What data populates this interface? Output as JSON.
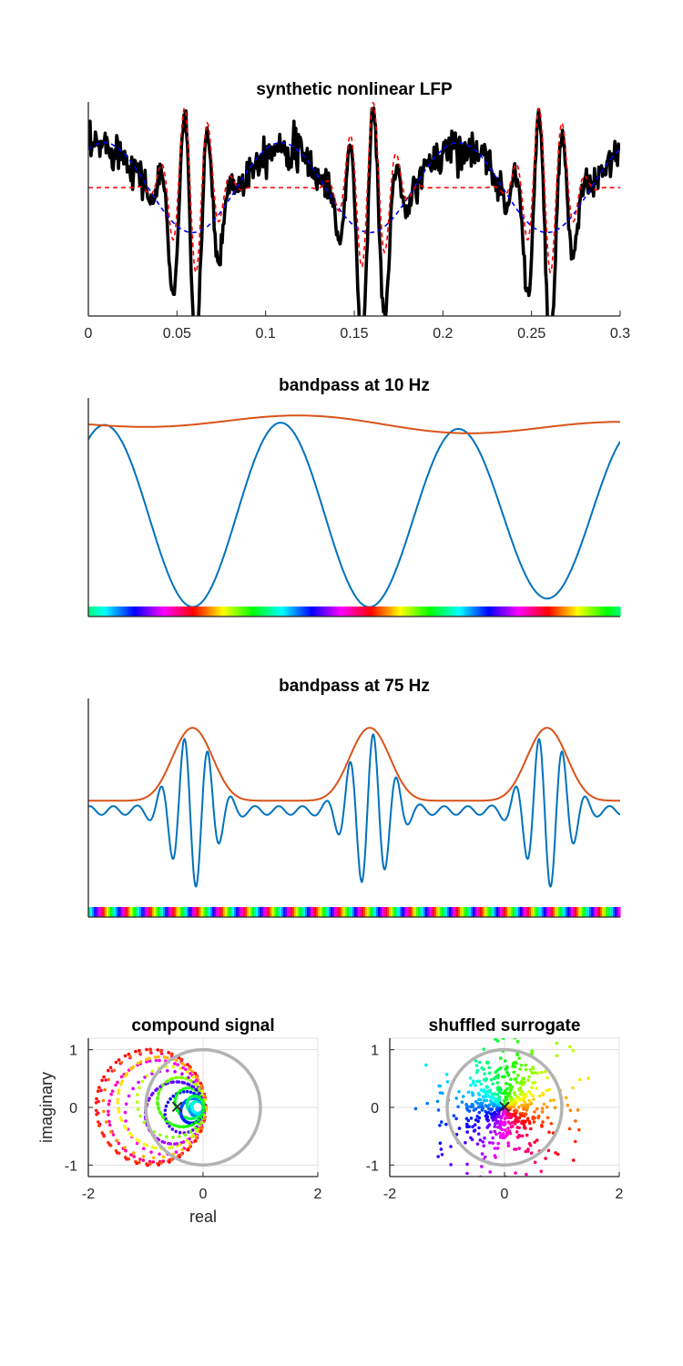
{
  "figure": {
    "colors": {
      "lfp": "#000000",
      "low_component": "#0000ff",
      "high_component": "#ff0000",
      "filtered": "#0072bd",
      "envelope": "#d95319",
      "unit_circle": "#b3b3b3",
      "grid": "#e0e0e0"
    }
  },
  "chart_data": [
    {
      "id": "lfp",
      "type": "line",
      "title": "synthetic nonlinear LFP",
      "xlim": [
        0,
        0.3
      ],
      "xticks": [
        "0",
        "0.05",
        "0.1",
        "0.15",
        "0.2",
        "0.25",
        "0.3"
      ],
      "yticks_shown": false,
      "slow_freq_hz": 10,
      "fast_freq_hz": 75,
      "series": [
        {
          "role": "lfp",
          "style": "solid",
          "color": "#000000"
        },
        {
          "role": "low_component",
          "style": "dashed",
          "color": "#0000ff"
        },
        {
          "role": "high_component",
          "style": "dashed",
          "color": "#ff0000"
        }
      ]
    },
    {
      "id": "bp10",
      "type": "line",
      "title": "bandpass at 10 Hz",
      "xlim": [
        0,
        0.3
      ],
      "freq_hz": 10,
      "series": [
        {
          "role": "filtered",
          "color": "#0072bd"
        },
        {
          "role": "envelope",
          "color": "#d95319"
        }
      ],
      "phase_colorbar": true
    },
    {
      "id": "bp75",
      "type": "line",
      "title": "bandpass at 75 Hz",
      "xlim": [
        0,
        0.3
      ],
      "freq_hz": 75,
      "series": [
        {
          "role": "filtered",
          "color": "#0072bd"
        },
        {
          "role": "envelope",
          "color": "#d95319"
        }
      ],
      "phase_colorbar": true
    },
    {
      "id": "compound",
      "type": "scatter",
      "title": "compound signal",
      "xlabel": "real",
      "ylabel": "imaginary",
      "xlim": [
        -2,
        2
      ],
      "ylim": [
        -1.2,
        1.2
      ],
      "xticks": [
        "-2",
        "0",
        "2"
      ],
      "yticks": [
        "1",
        "0",
        "-1"
      ],
      "grid": true,
      "unit_circle": true,
      "mean_marker": {
        "x": -0.45,
        "y": 0.0
      },
      "mean_glyph": "×"
    },
    {
      "id": "surrogate",
      "type": "scatter",
      "title": "shuffled surrogate",
      "xlim": [
        -2,
        2
      ],
      "ylim": [
        -1.2,
        1.2
      ],
      "xticks": [
        "-2",
        "0",
        "2"
      ],
      "yticks": [
        "1",
        "0",
        "-1"
      ],
      "grid": true,
      "unit_circle": true,
      "mean_marker": {
        "x": 0.0,
        "y": 0.0
      },
      "mean_glyph": "×"
    }
  ]
}
